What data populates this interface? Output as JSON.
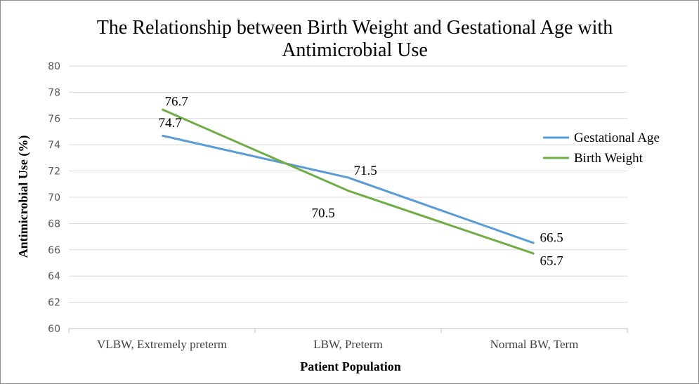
{
  "chart_data": {
    "type": "line",
    "title_line1": "The Relationship between Birth Weight and Gestational Age with",
    "title_line2": "Antimicrobial Use",
    "xlabel": "Patient Population",
    "ylabel": "Antimicrobial Use (%)",
    "categories": [
      "VLBW, Extremely preterm",
      "LBW, Preterm",
      "Normal BW, Term"
    ],
    "ylim": [
      60,
      80
    ],
    "yticks": [
      "60",
      "62",
      "64",
      "66",
      "68",
      "70",
      "72",
      "74",
      "76",
      "78",
      "80"
    ],
    "grid": true,
    "legend_position": "right",
    "series": [
      {
        "name": "Gestational Age",
        "color": "#5b9bd5",
        "values": [
          74.7,
          71.5,
          66.5
        ],
        "labels": [
          "74.7",
          "71.5",
          "66.5"
        ]
      },
      {
        "name": "Birth Weight",
        "color": "#70ad47",
        "values": [
          76.7,
          70.5,
          65.7
        ],
        "labels": [
          "76.7",
          "70.5",
          "65.7"
        ]
      }
    ]
  }
}
